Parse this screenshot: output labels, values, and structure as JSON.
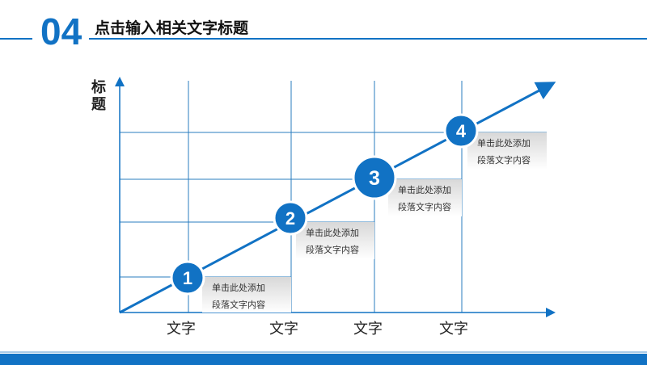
{
  "header": {
    "number": "04",
    "title": "点击输入相关文字标题"
  },
  "diagram": {
    "y_label": "标题",
    "x_labels": [
      "文字",
      "文字",
      "文字",
      "文字"
    ],
    "steps": [
      {
        "num": "1",
        "line1": "单击此处添加",
        "line2": "段落文字内容"
      },
      {
        "num": "2",
        "line1": "单击此处添加",
        "line2": "段落文字内容"
      },
      {
        "num": "3",
        "line1": "单击此处添加",
        "line2": "段落文字内容"
      },
      {
        "num": "4",
        "line1": "单击此处添加",
        "line2": "段落文字内容"
      }
    ]
  },
  "colors": {
    "accent": "#1172c4",
    "grid": "#2a7cbf"
  }
}
